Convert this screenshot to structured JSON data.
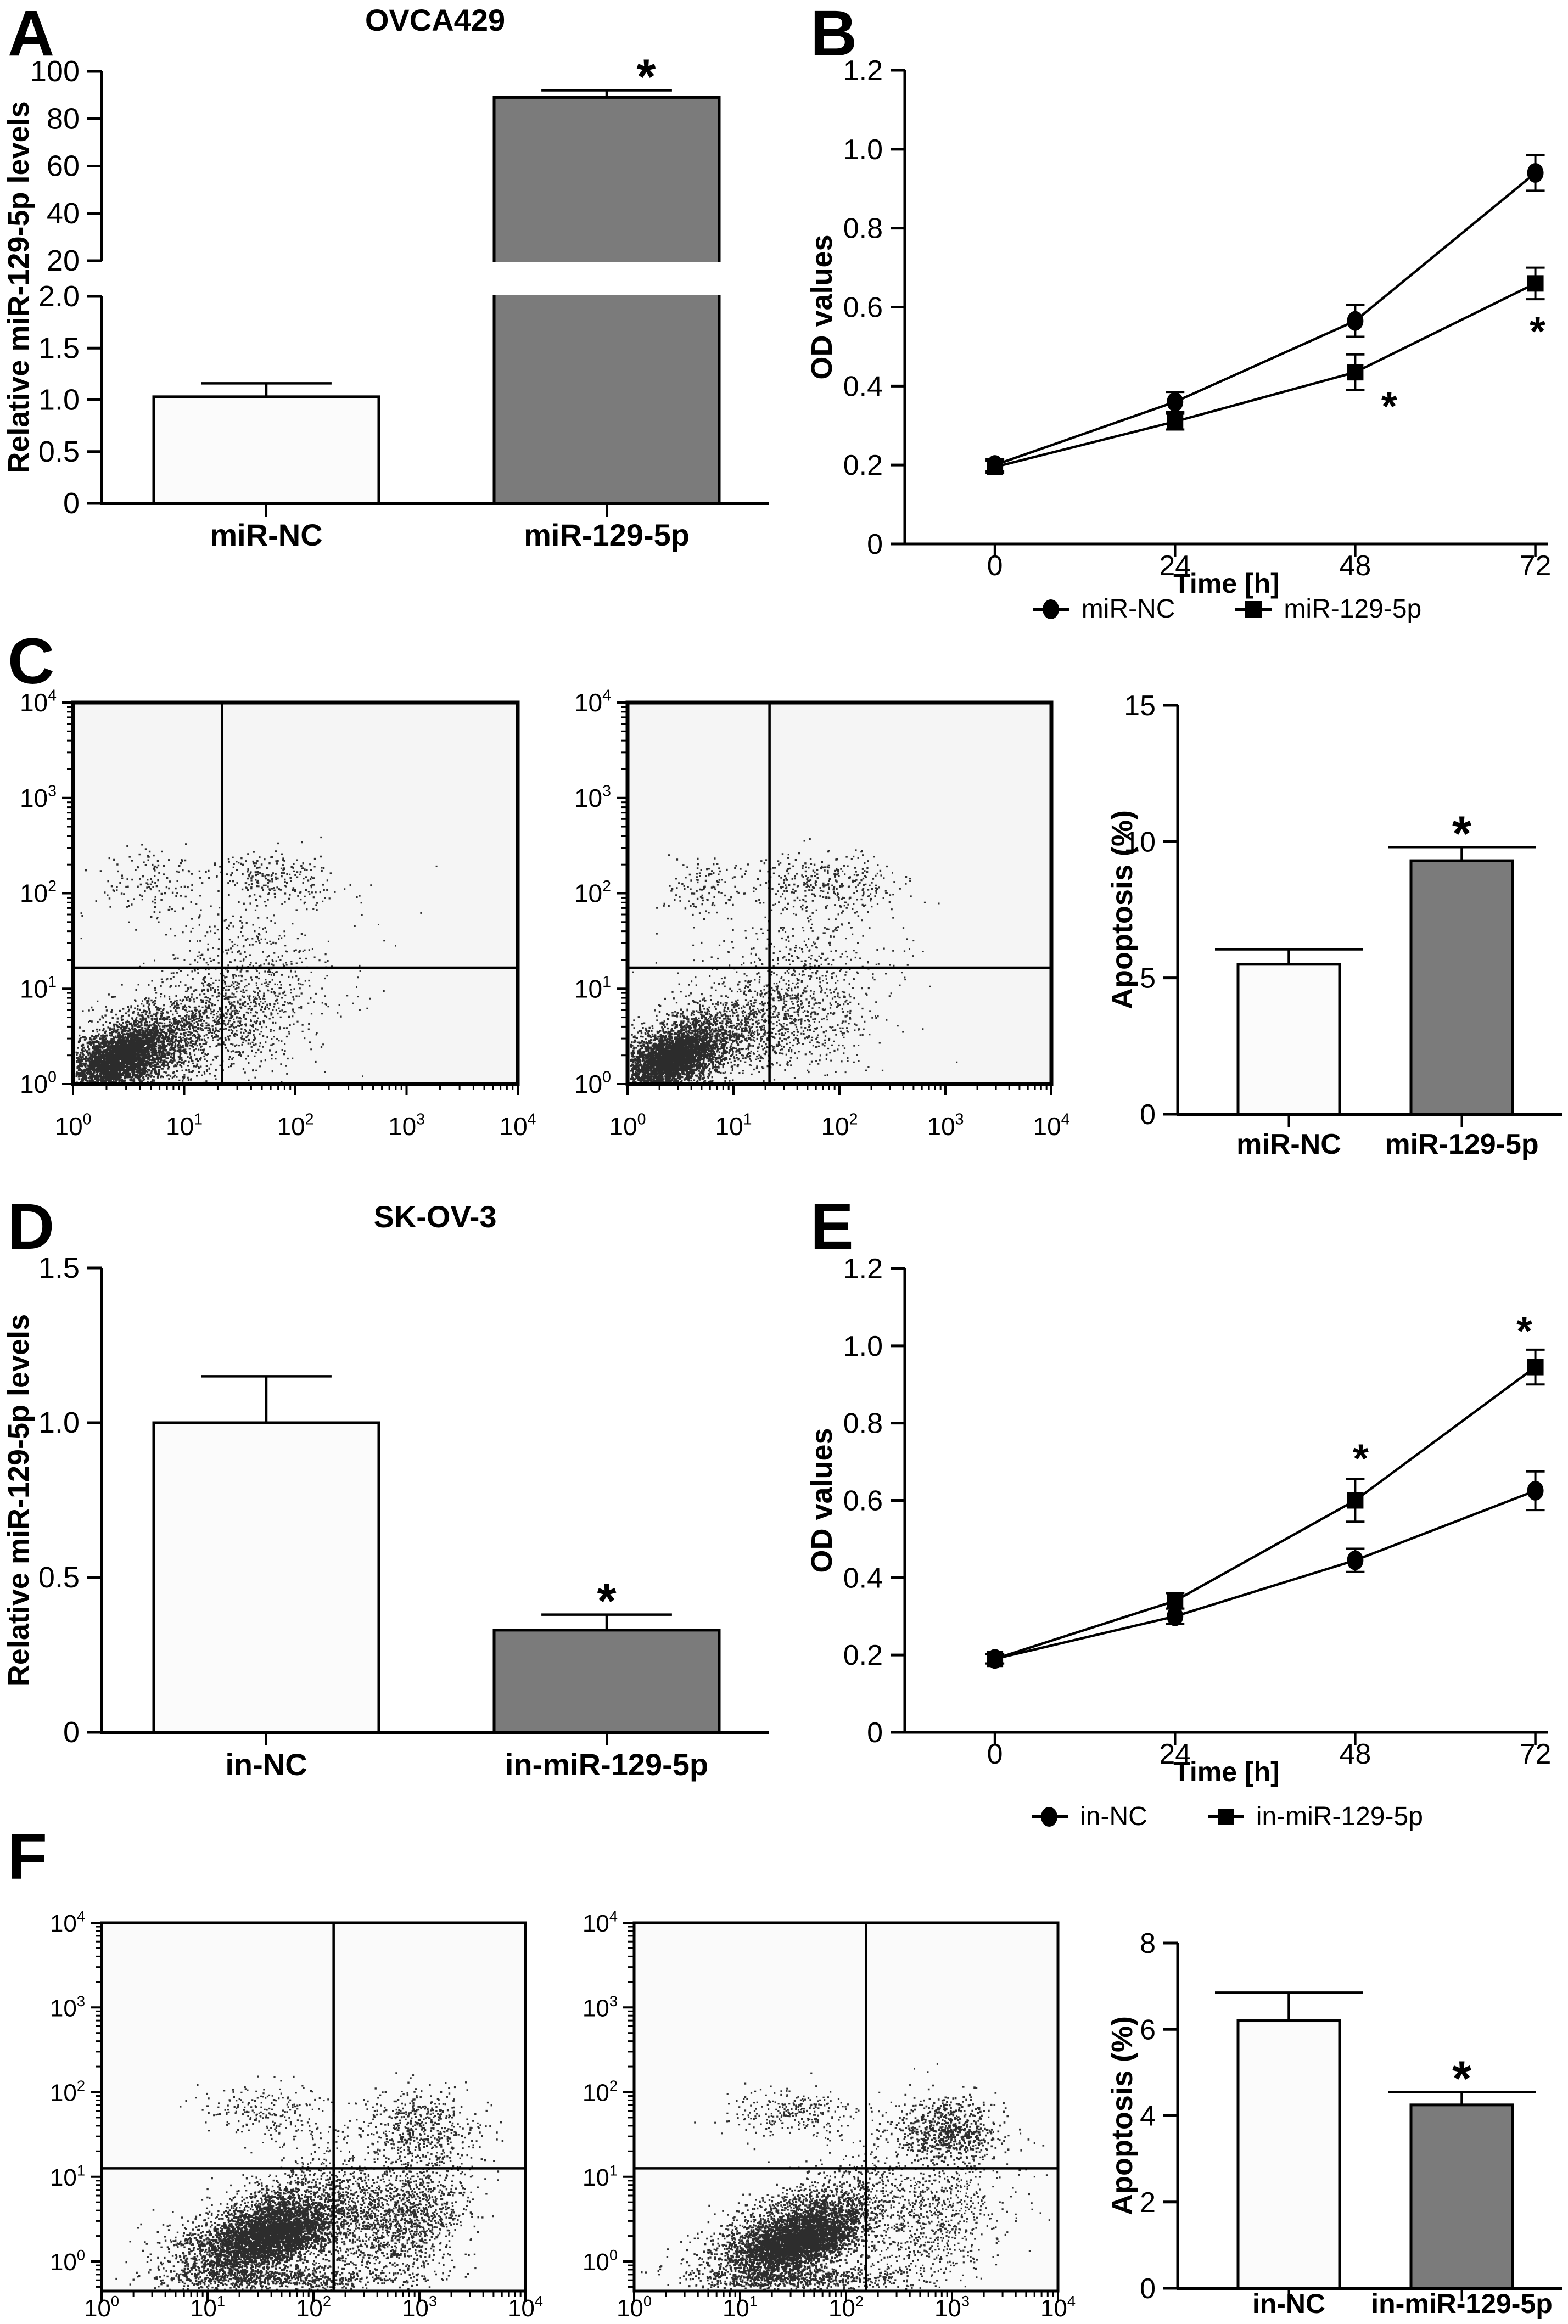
{
  "colors": {
    "ink": "#000000",
    "bar_white": "#fbfbfb",
    "bar_gray": "#7b7b7b",
    "flow_bg_c": "#f5f5f5",
    "flow_bg_f": "#fafafa"
  },
  "panels": {
    "A": {
      "letter": "A",
      "title": "OVCA429"
    },
    "B": {
      "letter": "B"
    },
    "C": {
      "letter": "C"
    },
    "D": {
      "letter": "D",
      "title": "SK-OV-3"
    },
    "E": {
      "letter": "E"
    },
    "F": {
      "letter": "F"
    }
  },
  "legends": {
    "B": [
      {
        "marker": "circle",
        "label": "miR-NC"
      },
      {
        "marker": "square",
        "label": "miR-129-5p"
      }
    ],
    "E": [
      {
        "marker": "circle",
        "label": "in-NC"
      },
      {
        "marker": "square",
        "label": "in-miR-129-5p"
      }
    ]
  },
  "chart_data": [
    {
      "id": "A",
      "type": "bar",
      "broken_axis": true,
      "title": "OVCA429",
      "ylabel": "Relative miR-129-5p levels",
      "upper": {
        "ylim": [
          20,
          100
        ],
        "ticks": [
          {
            "v": 20,
            "t": "20"
          },
          {
            "v": 40,
            "t": "40"
          },
          {
            "v": 60,
            "t": "60"
          },
          {
            "v": 80,
            "t": "80"
          },
          {
            "v": 100,
            "t": "100"
          }
        ]
      },
      "lower": {
        "ylim": [
          0,
          2
        ],
        "ticks": [
          {
            "v": 0,
            "t": "0"
          },
          {
            "v": 0.5,
            "t": "0.5"
          },
          {
            "v": 1.0,
            "t": "1.0"
          },
          {
            "v": 1.5,
            "t": "1.5"
          },
          {
            "v": 2.0,
            "t": "2.0"
          }
        ]
      },
      "categories": [
        "miR-NC",
        "miR-129-5p"
      ],
      "values": [
        1.03,
        89
      ],
      "errors": [
        0.13,
        3
      ],
      "significant": [
        false,
        true
      ],
      "bar_colors": [
        "white",
        "gray"
      ]
    },
    {
      "id": "B",
      "type": "line",
      "ylabel": "OD values",
      "xlabel": "Time [h]",
      "ylim": [
        0,
        1.2
      ],
      "yticks": [
        {
          "v": 0,
          "t": "0"
        },
        {
          "v": 0.2,
          "t": "0.2"
        },
        {
          "v": 0.4,
          "t": "0.4"
        },
        {
          "v": 0.6,
          "t": "0.6"
        },
        {
          "v": 0.8,
          "t": "0.8"
        },
        {
          "v": 1.0,
          "t": "1.0"
        },
        {
          "v": 1.2,
          "t": "1.2"
        }
      ],
      "x": [
        {
          "v": 0,
          "t": "0"
        },
        {
          "v": 24,
          "t": "24"
        },
        {
          "v": 48,
          "t": "48"
        },
        {
          "v": 72,
          "t": "72"
        }
      ],
      "series": [
        {
          "name": "miR-NC",
          "marker": "circle",
          "values": [
            0.2,
            0.36,
            0.565,
            0.94
          ],
          "errors": [
            0.015,
            0.025,
            0.04,
            0.045
          ]
        },
        {
          "name": "miR-129-5p",
          "marker": "square",
          "values": [
            0.195,
            0.31,
            0.435,
            0.66
          ],
          "errors": [
            0.015,
            0.02,
            0.045,
            0.04
          ]
        }
      ],
      "asterisks": [
        {
          "x": 48,
          "y": 0.355,
          "dx": 62
        },
        {
          "x": 72,
          "y": 0.545,
          "dx": 4
        }
      ],
      "legend_position": "bottom"
    },
    {
      "id": "C1",
      "type": "scatter-flow",
      "group": "miR-NC",
      "xlim": [
        0,
        4
      ],
      "ylim": [
        0,
        4
      ],
      "log_decades": [
        0,
        1,
        2,
        3,
        4
      ],
      "gate": {
        "x": 1.34,
        "y": 1.22
      },
      "seed": 11,
      "clusters": [
        {
          "cx": 0.45,
          "cy": 0.32,
          "sx": 0.34,
          "sy": 0.26,
          "rho": 0.55,
          "n": 2300,
          "s": 3.4
        },
        {
          "cx": 0.42,
          "cy": 0.28,
          "sx": 0.2,
          "sy": 0.15,
          "rho": 0.5,
          "n": 1500,
          "s": 4.0
        },
        {
          "cx": 1.1,
          "cy": 0.6,
          "sx": 0.35,
          "sy": 0.3,
          "rho": 0.5,
          "n": 700,
          "s": 3.2
        },
        {
          "cx": 1.7,
          "cy": 0.75,
          "sx": 0.3,
          "sy": 0.35,
          "rho": 0.3,
          "n": 420,
          "s": 3.2
        },
        {
          "cx": 1.45,
          "cy": 1.35,
          "sx": 0.3,
          "sy": 0.3,
          "rho": 0.2,
          "n": 160,
          "s": 3.2
        },
        {
          "cx": 0.75,
          "cy": 2.12,
          "sx": 0.25,
          "sy": 0.17,
          "rho": 0.0,
          "n": 140,
          "s": 3.4
        },
        {
          "cx": 1.7,
          "cy": 2.18,
          "sx": 0.22,
          "sy": 0.13,
          "rho": 0.0,
          "n": 150,
          "s": 3.4
        },
        {
          "cx": 2.0,
          "cy": 2.1,
          "sx": 0.22,
          "sy": 0.18,
          "rho": 0.0,
          "n": 90,
          "s": 3.2
        },
        {
          "cx": 1.3,
          "cy": 1.0,
          "sx": 0.7,
          "sy": 0.55,
          "rho": 0.3,
          "n": 180,
          "s": 3.0
        }
      ]
    },
    {
      "id": "C2",
      "type": "scatter-flow",
      "group": "miR-129-5p",
      "xlim": [
        0,
        4
      ],
      "ylim": [
        0,
        4
      ],
      "log_decades": [
        0,
        1,
        2,
        3,
        4
      ],
      "gate": {
        "x": 1.34,
        "y": 1.22
      },
      "seed": 22,
      "clusters": [
        {
          "cx": 0.42,
          "cy": 0.3,
          "sx": 0.32,
          "sy": 0.25,
          "rho": 0.55,
          "n": 2200,
          "s": 3.4
        },
        {
          "cx": 0.4,
          "cy": 0.26,
          "sx": 0.19,
          "sy": 0.14,
          "rho": 0.5,
          "n": 1400,
          "s": 4.0
        },
        {
          "cx": 1.05,
          "cy": 0.55,
          "sx": 0.35,
          "sy": 0.3,
          "rho": 0.5,
          "n": 750,
          "s": 3.2
        },
        {
          "cx": 1.7,
          "cy": 0.7,
          "sx": 0.32,
          "sy": 0.35,
          "rho": 0.3,
          "n": 500,
          "s": 3.2
        },
        {
          "cx": 1.5,
          "cy": 1.4,
          "sx": 0.35,
          "sy": 0.35,
          "rho": 0.2,
          "n": 200,
          "s": 3.2
        },
        {
          "cx": 0.72,
          "cy": 2.05,
          "sx": 0.22,
          "sy": 0.16,
          "rho": 0.0,
          "n": 120,
          "s": 3.4
        },
        {
          "cx": 1.75,
          "cy": 2.12,
          "sx": 0.3,
          "sy": 0.14,
          "rho": 0.0,
          "n": 220,
          "s": 3.4
        },
        {
          "cx": 2.2,
          "cy": 2.05,
          "sx": 0.25,
          "sy": 0.2,
          "rho": 0.0,
          "n": 100,
          "s": 3.2
        },
        {
          "cx": 1.4,
          "cy": 1.0,
          "sx": 0.7,
          "sy": 0.55,
          "rho": 0.3,
          "n": 180,
          "s": 3.0
        }
      ]
    },
    {
      "id": "C3",
      "type": "bar",
      "ylabel": "Apoptosis (%)",
      "ylim": [
        0,
        15
      ],
      "yticks": [
        {
          "v": 0,
          "t": "0"
        },
        {
          "v": 5,
          "t": "5"
        },
        {
          "v": 10,
          "t": "10"
        },
        {
          "v": 15,
          "t": "15"
        }
      ],
      "categories": [
        "miR-NC",
        "miR-129-5p"
      ],
      "values": [
        5.5,
        9.3
      ],
      "errors": [
        0.55,
        0.5
      ],
      "significant": [
        false,
        true
      ],
      "bar_colors": [
        "white",
        "gray"
      ]
    },
    {
      "id": "D",
      "type": "bar",
      "title": "SK-OV-3",
      "ylabel": "Relative miR-129-5p levels",
      "ylim": [
        0,
        1.5
      ],
      "yticks": [
        {
          "v": 0,
          "t": "0"
        },
        {
          "v": 0.5,
          "t": "0.5"
        },
        {
          "v": 1.0,
          "t": "1.0"
        },
        {
          "v": 1.5,
          "t": "1.5"
        }
      ],
      "categories": [
        "in-NC",
        "in-miR-129-5p"
      ],
      "values": [
        1.0,
        0.33
      ],
      "errors": [
        0.15,
        0.05
      ],
      "significant": [
        false,
        true
      ],
      "bar_colors": [
        "white",
        "gray"
      ]
    },
    {
      "id": "E",
      "type": "line",
      "ylabel": "OD values",
      "xlabel": "Time [h]",
      "ylim": [
        0,
        1.2
      ],
      "yticks": [
        {
          "v": 0,
          "t": "0"
        },
        {
          "v": 0.2,
          "t": "0.2"
        },
        {
          "v": 0.4,
          "t": "0.4"
        },
        {
          "v": 0.6,
          "t": "0.6"
        },
        {
          "v": 0.8,
          "t": "0.8"
        },
        {
          "v": 1.0,
          "t": "1.0"
        },
        {
          "v": 1.2,
          "t": "1.2"
        }
      ],
      "x": [
        {
          "v": 0,
          "t": "0"
        },
        {
          "v": 24,
          "t": "24"
        },
        {
          "v": 48,
          "t": "48"
        },
        {
          "v": 72,
          "t": "72"
        }
      ],
      "series": [
        {
          "name": "in-NC",
          "marker": "circle",
          "values": [
            0.19,
            0.3,
            0.445,
            0.625
          ],
          "errors": [
            0.012,
            0.02,
            0.03,
            0.05
          ]
        },
        {
          "name": "in-miR-129-5p",
          "marker": "square",
          "values": [
            0.19,
            0.34,
            0.6,
            0.945
          ],
          "errors": [
            0.012,
            0.02,
            0.055,
            0.045
          ]
        }
      ],
      "asterisks": [
        {
          "x": 48,
          "y": 0.715,
          "dx": 10
        },
        {
          "x": 72,
          "y": 1.045,
          "dx": -20
        }
      ],
      "legend_position": "bottom"
    },
    {
      "id": "F1",
      "type": "scatter-flow",
      "group": "in-NC",
      "xlim": [
        0,
        4
      ],
      "ylim": [
        -0.35,
        4
      ],
      "log_decades": [
        0,
        1,
        2,
        3,
        4
      ],
      "gate": {
        "x": 2.19,
        "y": 1.1
      },
      "seed": 33,
      "clusters": [
        {
          "cx": 1.55,
          "cy": 0.4,
          "sx": 0.45,
          "sy": 0.32,
          "rho": 0.6,
          "n": 2600,
          "s": 3.4
        },
        {
          "cx": 1.6,
          "cy": 0.3,
          "sx": 0.3,
          "sy": 0.2,
          "rho": 0.5,
          "n": 2000,
          "s": 4.0
        },
        {
          "cx": 1.6,
          "cy": -0.2,
          "sx": 0.55,
          "sy": 0.07,
          "rho": 0.0,
          "n": 700,
          "s": 3.4
        },
        {
          "cx": 2.95,
          "cy": 0.55,
          "sx": 0.28,
          "sy": 0.4,
          "rho": 0.2,
          "n": 900,
          "s": 3.4
        },
        {
          "cx": 2.55,
          "cy": 0.35,
          "sx": 0.3,
          "sy": 0.3,
          "rho": 0.3,
          "n": 500,
          "s": 3.2
        },
        {
          "cx": 1.55,
          "cy": 1.78,
          "sx": 0.3,
          "sy": 0.16,
          "rho": 0.0,
          "n": 210,
          "s": 3.2
        },
        {
          "cx": 3.0,
          "cy": 1.62,
          "sx": 0.25,
          "sy": 0.22,
          "rho": 0.0,
          "n": 420,
          "s": 3.4
        },
        {
          "cx": 2.3,
          "cy": 1.0,
          "sx": 0.5,
          "sy": 0.45,
          "rho": 0.2,
          "n": 280,
          "s": 3.0
        }
      ]
    },
    {
      "id": "F2",
      "type": "scatter-flow",
      "group": "in-miR-129-5p",
      "xlim": [
        0,
        4
      ],
      "ylim": [
        -0.35,
        4
      ],
      "log_decades": [
        0,
        1,
        2,
        3,
        4
      ],
      "gate": {
        "x": 2.19,
        "y": 1.1
      },
      "seed": 44,
      "clusters": [
        {
          "cx": 1.5,
          "cy": 0.35,
          "sx": 0.42,
          "sy": 0.3,
          "rho": 0.6,
          "n": 2600,
          "s": 3.4
        },
        {
          "cx": 1.55,
          "cy": 0.25,
          "sx": 0.28,
          "sy": 0.18,
          "rho": 0.5,
          "n": 2000,
          "s": 4.0
        },
        {
          "cx": 1.55,
          "cy": -0.2,
          "sx": 0.5,
          "sy": 0.07,
          "rho": 0.0,
          "n": 600,
          "s": 3.4
        },
        {
          "cx": 2.8,
          "cy": 0.45,
          "sx": 0.35,
          "sy": 0.38,
          "rho": 0.25,
          "n": 700,
          "s": 3.2
        },
        {
          "cx": 1.5,
          "cy": 1.78,
          "sx": 0.32,
          "sy": 0.14,
          "rho": 0.0,
          "n": 260,
          "s": 3.2
        },
        {
          "cx": 2.95,
          "cy": 1.55,
          "sx": 0.26,
          "sy": 0.2,
          "rho": 0.0,
          "n": 650,
          "s": 3.6
        },
        {
          "cx": 2.45,
          "cy": 0.95,
          "sx": 0.5,
          "sy": 0.45,
          "rho": 0.2,
          "n": 240,
          "s": 3.0
        }
      ]
    },
    {
      "id": "F3",
      "type": "bar",
      "ylabel": "Apoptosis (%)",
      "ylim": [
        0,
        8
      ],
      "yticks": [
        {
          "v": 0,
          "t": "0"
        },
        {
          "v": 2,
          "t": "2"
        },
        {
          "v": 4,
          "t": "4"
        },
        {
          "v": 6,
          "t": "6"
        },
        {
          "v": 8,
          "t": "8"
        }
      ],
      "categories": [
        "in-NC",
        "in-miR-129-5p"
      ],
      "values": [
        6.2,
        4.25
      ],
      "errors": [
        0.65,
        0.3
      ],
      "significant": [
        false,
        true
      ],
      "bar_colors": [
        "white",
        "gray"
      ]
    }
  ]
}
